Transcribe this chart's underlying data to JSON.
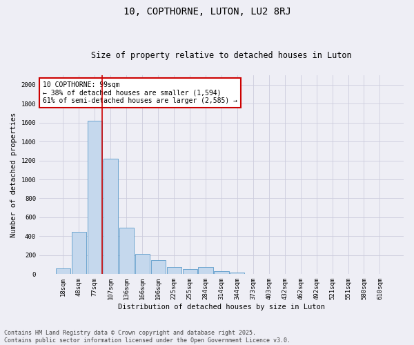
{
  "title": "10, COPTHORNE, LUTON, LU2 8RJ",
  "subtitle": "Size of property relative to detached houses in Luton",
  "xlabel": "Distribution of detached houses by size in Luton",
  "ylabel": "Number of detached properties",
  "categories": [
    "18sqm",
    "48sqm",
    "77sqm",
    "107sqm",
    "136sqm",
    "166sqm",
    "196sqm",
    "225sqm",
    "255sqm",
    "284sqm",
    "314sqm",
    "344sqm",
    "373sqm",
    "403sqm",
    "432sqm",
    "462sqm",
    "492sqm",
    "521sqm",
    "551sqm",
    "580sqm",
    "610sqm"
  ],
  "values": [
    60,
    450,
    1620,
    1220,
    490,
    215,
    145,
    75,
    50,
    75,
    30,
    15,
    5,
    2,
    1,
    0,
    0,
    0,
    0,
    0,
    0
  ],
  "bar_color": "#c5d8ed",
  "bar_edge_color": "#5b9bca",
  "grid_color": "#ccccdd",
  "background_color": "#eeeef5",
  "vline_x_index": 2,
  "vline_color": "#cc0000",
  "annotation_text": "10 COPTHORNE: 99sqm\n← 38% of detached houses are smaller (1,594)\n61% of semi-detached houses are larger (2,585) →",
  "annotation_box_color": "#ffffff",
  "annotation_box_edge": "#cc0000",
  "ylim": [
    0,
    2100
  ],
  "yticks": [
    0,
    200,
    400,
    600,
    800,
    1000,
    1200,
    1400,
    1600,
    1800,
    2000
  ],
  "footer": "Contains HM Land Registry data © Crown copyright and database right 2025.\nContains public sector information licensed under the Open Government Licence v3.0.",
  "title_fontsize": 10,
  "subtitle_fontsize": 8.5,
  "axis_label_fontsize": 7.5,
  "tick_fontsize": 6.5,
  "annotation_fontsize": 7,
  "footer_fontsize": 6
}
